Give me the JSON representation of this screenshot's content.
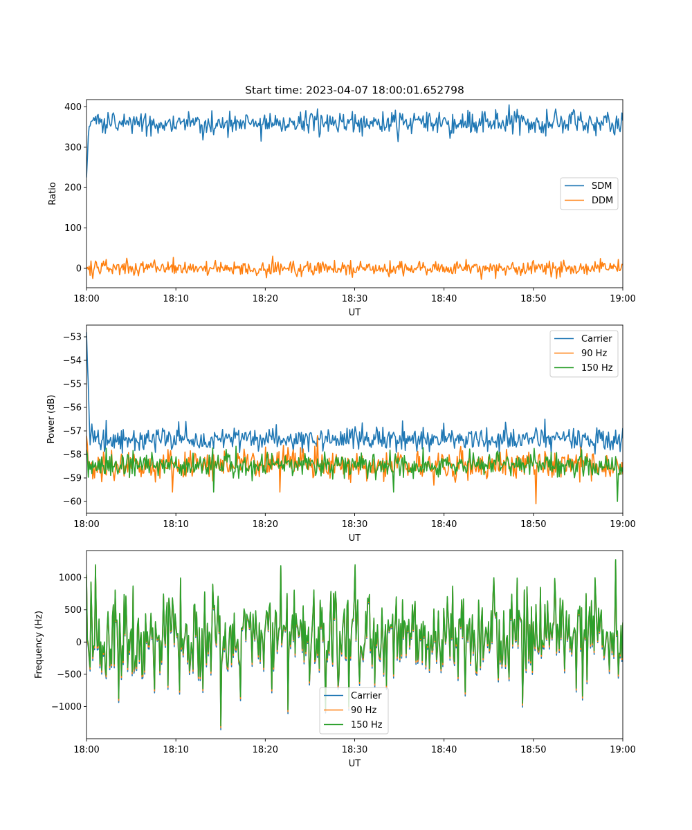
{
  "figure": {
    "title": "Start time: 2023-04-07 18:00:01.652798"
  },
  "chart_data": [
    {
      "type": "line",
      "title": "Start time: 2023-04-07 18:00:01.652798",
      "xlabel": "UT",
      "ylabel": "Ratio",
      "xlim": [
        "18:00",
        "19:00"
      ],
      "xticks": [
        "18:00",
        "18:10",
        "18:20",
        "18:30",
        "18:40",
        "18:50",
        "19:00"
      ],
      "ylim": [
        -48,
        418
      ],
      "yticks": [
        0,
        100,
        200,
        300,
        400
      ],
      "ytick_labels": [
        "0",
        "100",
        "200",
        "300",
        "400"
      ],
      "grid": false,
      "legend_position": "center-right",
      "series": [
        {
          "name": "SDM",
          "color": "#1f77b4",
          "start": 225,
          "settle_minutes": 0.3,
          "mean": 360,
          "noise": 16,
          "extremes": [
            [
              1.2,
              378
            ],
            [
              4.2,
              382
            ],
            [
              13.0,
              318
            ],
            [
              19.5,
              315
            ],
            [
              25.8,
              395
            ],
            [
              34.9,
              314
            ],
            [
              44.6,
              388
            ],
            [
              51.5,
              394
            ],
            [
              54.5,
              393
            ],
            [
              59.9,
              385
            ]
          ]
        },
        {
          "name": "DDM",
          "color": "#ff7f0e",
          "start": 0,
          "settle_minutes": 0,
          "mean": 0,
          "noise": 10,
          "extremes": [
            [
              0.7,
              -25
            ],
            [
              2.2,
              22
            ],
            [
              9.7,
              27
            ],
            [
              26.0,
              -12
            ],
            [
              42.5,
              22
            ],
            [
              45.8,
              -25
            ],
            [
              52.6,
              -25
            ],
            [
              53.4,
              20
            ],
            [
              59.5,
              22
            ]
          ]
        }
      ]
    },
    {
      "type": "line",
      "xlabel": "UT",
      "ylabel": "Power (dB)",
      "xlim": [
        "18:00",
        "19:00"
      ],
      "xticks": [
        "18:00",
        "18:10",
        "18:20",
        "18:30",
        "18:40",
        "18:50",
        "19:00"
      ],
      "ylim": [
        -60.5,
        -52.5
      ],
      "yticks": [
        -60,
        -59,
        -58,
        -57,
        -56,
        -55,
        -54,
        -53
      ],
      "ytick_labels": [
        "−60",
        "−59",
        "−58",
        "−57",
        "−56",
        "−55",
        "−54",
        "−53"
      ],
      "grid": false,
      "legend_position": "upper-right",
      "series": [
        {
          "name": "Carrier",
          "color": "#1f77b4",
          "start": -52.8,
          "settle_minutes": 0.4,
          "mean": -57.35,
          "noise": 0.28,
          "extremes": [
            [
              2.2,
              -56.55
            ],
            [
              11.1,
              -56.6
            ],
            [
              51.3,
              -56.5
            ],
            [
              54.5,
              -56.9
            ]
          ]
        },
        {
          "name": "90 Hz",
          "color": "#ff7f0e",
          "start": -57.2,
          "settle_minutes": 0.2,
          "mean": -58.45,
          "noise": 0.33,
          "extremes": [
            [
              9.6,
              -59.6
            ],
            [
              21.6,
              -59.6
            ],
            [
              50.3,
              -60.1
            ],
            [
              25.8,
              -57.2
            ]
          ]
        },
        {
          "name": "150 Hz",
          "color": "#2ca02c",
          "start": -57.8,
          "settle_minutes": 0.2,
          "mean": -58.45,
          "noise": 0.3,
          "extremes": [
            [
              14.2,
              -59.6
            ],
            [
              34.4,
              -59.6
            ],
            [
              59.4,
              -60.0
            ],
            [
              55.4,
              -57.8
            ]
          ]
        }
      ]
    },
    {
      "type": "line",
      "xlabel": "UT",
      "ylabel": "Frequency (Hz)",
      "xlim": [
        "18:00",
        "19:00"
      ],
      "xticks": [
        "18:00",
        "18:10",
        "18:20",
        "18:30",
        "18:40",
        "18:50",
        "19:00"
      ],
      "ylim": [
        -1500,
        1420
      ],
      "yticks": [
        -1000,
        -500,
        0,
        500,
        1000
      ],
      "ytick_labels": [
        "−1000",
        "−500",
        "0",
        "500",
        "1000"
      ],
      "grid": false,
      "legend_position": "lower-center",
      "series": [
        {
          "name": "Carrier",
          "color": "#1f77b4",
          "offset": -60
        },
        {
          "name": "90 Hz",
          "color": "#ff7f0e",
          "offset": -30
        },
        {
          "name": "150 Hz",
          "color": "#2ca02c",
          "offset": 0
        }
      ],
      "base": {
        "start": 1050,
        "mean": 80,
        "noise": 400,
        "extremes": [
          [
            1.0,
            1200
          ],
          [
            15.0,
            -1300
          ],
          [
            22.5,
            -1050
          ],
          [
            30.0,
            1200
          ],
          [
            29.3,
            -1000
          ],
          [
            45.6,
            1000
          ],
          [
            48.8,
            -950
          ],
          [
            56.9,
            1000
          ],
          [
            59.2,
            1280
          ],
          [
            59.5,
            -500
          ]
        ]
      }
    }
  ]
}
